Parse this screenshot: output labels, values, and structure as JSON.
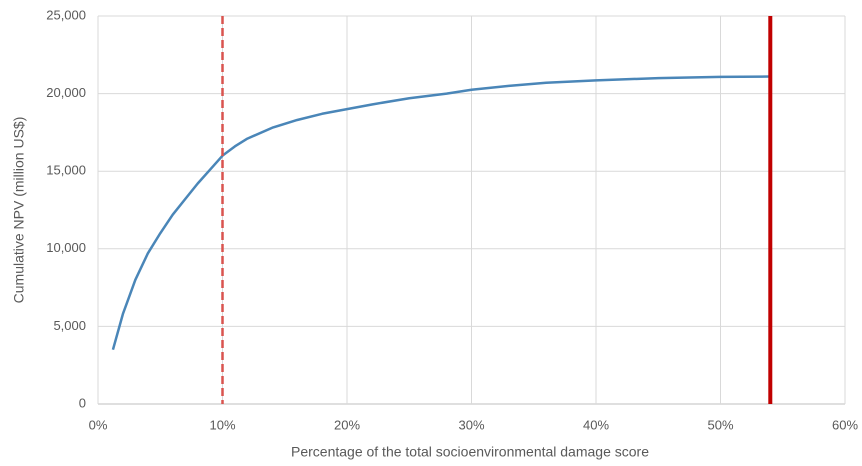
{
  "chart_data": {
    "type": "line",
    "x_label": "Percentage of the total socioenvironmental damage score",
    "y_label": "Cumulative NPV (million US$)",
    "x": [
      1.2,
      2,
      3,
      4,
      5,
      6,
      7,
      8,
      9,
      10,
      11,
      12,
      14,
      16,
      18,
      20,
      22,
      25,
      28,
      30,
      33,
      36,
      40,
      45,
      50,
      54
    ],
    "values": [
      3500,
      5800,
      8000,
      9700,
      11000,
      12200,
      13200,
      14200,
      15100,
      16000,
      16600,
      17100,
      17800,
      18300,
      18700,
      19000,
      19300,
      19700,
      20000,
      20250,
      20500,
      20700,
      20850,
      21000,
      21080,
      21100
    ],
    "color": "#4a86b8",
    "xlim": [
      0,
      60
    ],
    "xticks": [
      {
        "value": 0,
        "label": "0%"
      },
      {
        "value": 10,
        "label": "10%"
      },
      {
        "value": 20,
        "label": "20%"
      },
      {
        "value": 30,
        "label": "30%"
      },
      {
        "value": 40,
        "label": "40%"
      },
      {
        "value": 50,
        "label": "50%"
      },
      {
        "value": 60,
        "label": "60%"
      }
    ],
    "ylim": [
      0,
      25000
    ],
    "yticks": [
      0,
      {
        "value": 5000,
        "label": "5,000"
      },
      {
        "value": 10000,
        "label": "10,000"
      },
      {
        "value": 15000,
        "label": "15,000"
      },
      {
        "value": 20000,
        "label": "20,000"
      },
      {
        "value": 25000,
        "label": "25,000"
      }
    ],
    "grid": true,
    "vlines": [
      {
        "x": 10,
        "style": "dashed",
        "color": "#d9534f"
      },
      {
        "x": 54,
        "style": "solid",
        "color": "#c00000"
      }
    ]
  }
}
